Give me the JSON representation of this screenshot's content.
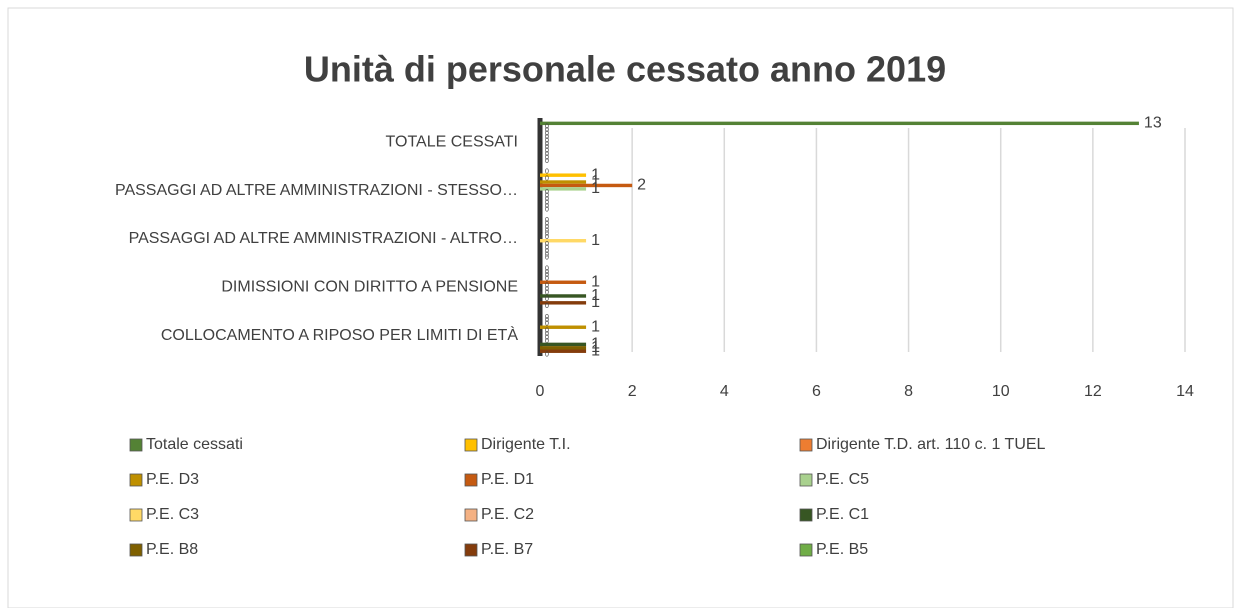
{
  "chart_data": {
    "type": "bar",
    "orientation": "horizontal",
    "title": "Unità di personale cessato anno 2019",
    "categories": [
      "COLLOCAMENTO A RIPOSO PER LIMITI DI ETÀ",
      "DIMISSIONI CON DIRITTO A PENSIONE",
      "PASSAGGI AD ALTRE AMMINISTRAZIONI - ALTRO…",
      "PASSAGGI AD ALTRE AMMINISTRAZIONI - STESSO…",
      "TOTALE CESSATI"
    ],
    "series": [
      {
        "name": "Totale cessati",
        "color": "#548235",
        "values": [
          0,
          0,
          0,
          0,
          13
        ]
      },
      {
        "name": "Dirigente T.I.",
        "color": "#ffc000",
        "values": [
          0,
          0,
          0,
          1,
          0
        ]
      },
      {
        "name": "Dirigente T.D. art. 110 c. 1 TUEL",
        "color": "#ed7d31",
        "values": [
          0,
          0,
          0,
          0,
          0
        ]
      },
      {
        "name": "P.E. D3",
        "color": "#bf9000",
        "values": [
          1,
          0,
          0,
          1,
          0
        ]
      },
      {
        "name": "P.E. D1",
        "color": "#c55a11",
        "values": [
          0,
          1,
          0,
          2,
          0
        ]
      },
      {
        "name": "P.E. C5",
        "color": "#a9d18e",
        "values": [
          0,
          0,
          0,
          1,
          0
        ]
      },
      {
        "name": "P.E. C3",
        "color": "#ffd966",
        "values": [
          0,
          0,
          1,
          0,
          0
        ]
      },
      {
        "name": "P.E. C2",
        "color": "#f4b183",
        "values": [
          0,
          0,
          0,
          0,
          0
        ]
      },
      {
        "name": "P.E. C1",
        "color": "#375623",
        "values": [
          1,
          1,
          0,
          0,
          0
        ]
      },
      {
        "name": "P.E. B8",
        "color": "#7f6000",
        "values": [
          1,
          0,
          0,
          0,
          0
        ]
      },
      {
        "name": "P.E. B7",
        "color": "#843c0c",
        "values": [
          1,
          1,
          0,
          0,
          0
        ]
      },
      {
        "name": "P.E. B5",
        "color": "#70ad47",
        "values": [
          0,
          0,
          0,
          0,
          0
        ]
      }
    ],
    "xlim": [
      0,
      14
    ],
    "xticks": [
      0,
      2,
      4,
      6,
      8,
      10,
      12,
      14
    ],
    "grid": true,
    "legend": "bottom"
  }
}
